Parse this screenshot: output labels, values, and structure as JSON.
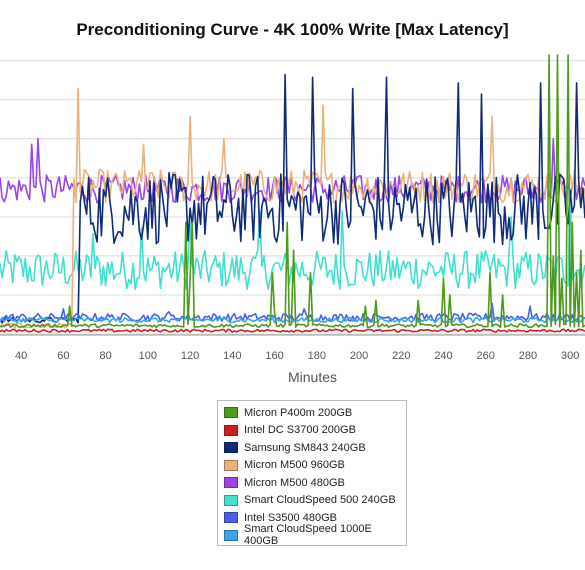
{
  "chart_data": {
    "type": "line",
    "title": "Preconditioning Curve - 4K 100% Write [Max Latency]",
    "xlabel": "Minutes",
    "ylabel": "",
    "x_ticks": [
      40,
      60,
      80,
      100,
      120,
      140,
      160,
      180,
      200,
      220,
      240,
      260,
      280,
      300
    ],
    "xlim": [
      30,
      307
    ],
    "ylim": [
      0,
      100
    ],
    "y_ticks_unlabeled": [
      0,
      14,
      28,
      42,
      56,
      70,
      84,
      98
    ],
    "grid": true,
    "legend_position": "bottom",
    "series": [
      {
        "name": "Micron P400m 200GB",
        "color": "#4c9a1a",
        "base": 3,
        "noise": 0.6,
        "min_start": 30,
        "spikes": [
          [
            63,
            10
          ],
          [
            118,
            40
          ],
          [
            120,
            20
          ],
          [
            121,
            40
          ],
          [
            159,
            22
          ],
          [
            160,
            8
          ],
          [
            166,
            40
          ],
          [
            169,
            30
          ],
          [
            177,
            22
          ],
          [
            203,
            10
          ],
          [
            208,
            12
          ],
          [
            228,
            12
          ],
          [
            240,
            20
          ],
          [
            243,
            14
          ],
          [
            262,
            22
          ],
          [
            268,
            14
          ],
          [
            290,
            100
          ],
          [
            292,
            28
          ],
          [
            294,
            100
          ],
          [
            296,
            20
          ],
          [
            299,
            100
          ],
          [
            301,
            40
          ],
          [
            303,
            22
          ],
          [
            305,
            30
          ]
        ]
      },
      {
        "name": "Intel DC S3700 200GB",
        "color": "#cc2020",
        "base": 1.2,
        "noise": 0.5,
        "min_start": 30,
        "spikes": []
      },
      {
        "name": "Samsung SM843 240GB",
        "color": "#0f2a7a",
        "base": 45,
        "noise": 13,
        "min_start": 68,
        "pre": 5,
        "spikes": [
          [
            165,
            93
          ],
          [
            178,
            92
          ],
          [
            197,
            88
          ],
          [
            213,
            92
          ],
          [
            247,
            90
          ],
          [
            258,
            86
          ],
          [
            286,
            90
          ],
          [
            303,
            90
          ]
        ]
      },
      {
        "name": "Micron M500 960GB",
        "color": "#eab27a",
        "base": 53,
        "noise": 6,
        "min_start": 65,
        "pre": 3,
        "spikes": [
          [
            67,
            88
          ],
          [
            98,
            68
          ],
          [
            120,
            78
          ],
          [
            136,
            70
          ],
          [
            183,
            82
          ],
          [
            263,
            78
          ]
        ]
      },
      {
        "name": "Micron M500 480GB",
        "color": "#9b45e8",
        "base": 52,
        "noise": 5,
        "min_start": 30,
        "pre": 52,
        "spikes": [
          [
            45,
            68
          ],
          [
            48,
            70
          ],
          [
            292,
            70
          ]
        ]
      },
      {
        "name": "Smart CloudSpeed 500 240GB",
        "color": "#40e0d0",
        "base": 23,
        "noise": 7,
        "min_start": 30,
        "pre": 23,
        "spikes": [
          [
            74,
            36
          ],
          [
            97,
            38
          ],
          [
            120,
            40
          ],
          [
            153,
            44
          ],
          [
            192,
            44
          ],
          [
            272,
            42
          ],
          [
            300,
            52
          ]
        ]
      },
      {
        "name": "Intel S3500 480GB",
        "color": "#4a60e8",
        "base": 6,
        "noise": 1.4,
        "min_start": 30,
        "spikes": [
          [
            60,
            9
          ],
          [
            110,
            8
          ],
          [
            174,
            9
          ],
          [
            263,
            11
          ],
          [
            281,
            10
          ]
        ]
      },
      {
        "name": "Smart CloudSpeed 1000E 400GB",
        "color": "#3aa6ea",
        "base": 5,
        "noise": 0.9,
        "min_start": 30,
        "spikes": []
      }
    ]
  }
}
